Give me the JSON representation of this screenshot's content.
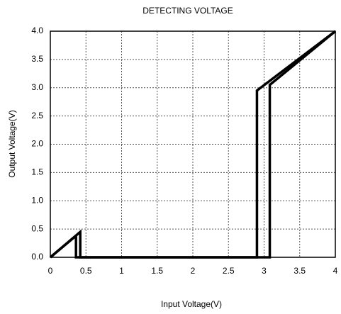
{
  "chart_data": {
    "type": "line",
    "title": "DETECTING VOLTAGE",
    "x_label": "Input Voltage(V)",
    "y_label": "Output Voltage(V)",
    "series": [
      {
        "color": "#000000",
        "x": [
          0,
          0.42,
          0.42,
          2.9,
          2.9,
          4
        ],
        "values": [
          0,
          0.45,
          0,
          0,
          2.95,
          4
        ]
      },
      {
        "color": "#000000",
        "x": [
          4,
          3.08,
          3.08,
          0.36,
          0.36,
          0
        ],
        "values": [
          4,
          3.05,
          0,
          0,
          0.38,
          0
        ]
      }
    ],
    "xlim": [
      0,
      4
    ],
    "ylim": [
      0,
      4
    ],
    "xticks": [
      0,
      0.5,
      1,
      1.5,
      2,
      2.5,
      3,
      3.5,
      4
    ],
    "yticks": [
      {
        "value": 0,
        "label": "0.0"
      },
      0.5,
      {
        "value": 1,
        "label": "1.0"
      },
      1.5,
      {
        "value": 2,
        "label": "2.0"
      },
      2.5,
      {
        "value": 3,
        "label": "3.0"
      },
      3.5,
      {
        "value": 4,
        "label": "4.0"
      }
    ],
    "grid": true
  }
}
